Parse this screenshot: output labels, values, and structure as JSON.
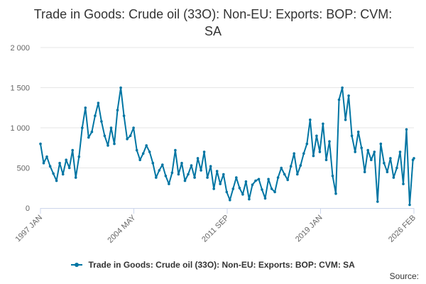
{
  "chart_data": {
    "type": "line",
    "title": "Trade in Goods: Crude oil (33O): Non-EU: Exports: BOP: CVM: SA",
    "xlabel": "",
    "ylabel": "",
    "ylim": [
      0,
      2000
    ],
    "y_ticks": [
      0,
      500,
      1000,
      1500,
      2000
    ],
    "y_tick_labels": [
      "0",
      "500",
      "1 000",
      "1 500",
      "2 000"
    ],
    "x_tick_labels": [
      "1997 JAN",
      "2004 MAY",
      "2011 SEP",
      "2019 JAN",
      "2026 FEB"
    ],
    "x_range": [
      "1997 JAN",
      "2026 FEB"
    ],
    "grid": true,
    "legend": "bottom-center",
    "color": "#0075a3",
    "series": [
      {
        "name": "Trade in Goods: Crude oil (33O): Non-EU: Exports: BOP: CVM: SA",
        "points": [
          [
            1997.0,
            800
          ],
          [
            1997.25,
            560
          ],
          [
            1997.5,
            640
          ],
          [
            1997.75,
            520
          ],
          [
            1998.0,
            430
          ],
          [
            1998.25,
            340
          ],
          [
            1998.5,
            560
          ],
          [
            1998.75,
            420
          ],
          [
            1999.0,
            600
          ],
          [
            1999.25,
            500
          ],
          [
            1999.5,
            720
          ],
          [
            1999.75,
            380
          ],
          [
            2000.0,
            640
          ],
          [
            2000.25,
            1000
          ],
          [
            2000.5,
            1250
          ],
          [
            2000.75,
            880
          ],
          [
            2001.0,
            950
          ],
          [
            2001.25,
            1150
          ],
          [
            2001.5,
            1310
          ],
          [
            2001.75,
            1080
          ],
          [
            2002.0,
            900
          ],
          [
            2002.25,
            780
          ],
          [
            2002.5,
            1000
          ],
          [
            2002.75,
            800
          ],
          [
            2003.0,
            1220
          ],
          [
            2003.25,
            1500
          ],
          [
            2003.5,
            1150
          ],
          [
            2003.75,
            860
          ],
          [
            2004.0,
            900
          ],
          [
            2004.25,
            1000
          ],
          [
            2004.5,
            720
          ],
          [
            2004.75,
            600
          ],
          [
            2005.0,
            680
          ],
          [
            2005.25,
            780
          ],
          [
            2005.5,
            700
          ],
          [
            2005.75,
            560
          ],
          [
            2006.0,
            380
          ],
          [
            2006.25,
            470
          ],
          [
            2006.5,
            540
          ],
          [
            2006.75,
            400
          ],
          [
            2007.0,
            300
          ],
          [
            2007.25,
            440
          ],
          [
            2007.5,
            720
          ],
          [
            2007.75,
            420
          ],
          [
            2008.0,
            560
          ],
          [
            2008.25,
            340
          ],
          [
            2008.5,
            420
          ],
          [
            2008.75,
            530
          ],
          [
            2009.0,
            380
          ],
          [
            2009.25,
            620
          ],
          [
            2009.5,
            470
          ],
          [
            2009.75,
            700
          ],
          [
            2010.0,
            380
          ],
          [
            2010.25,
            520
          ],
          [
            2010.5,
            240
          ],
          [
            2010.75,
            460
          ],
          [
            2011.0,
            300
          ],
          [
            2011.25,
            420
          ],
          [
            2011.5,
            200
          ],
          [
            2011.75,
            100
          ],
          [
            2012.0,
            240
          ],
          [
            2012.25,
            380
          ],
          [
            2012.5,
            250
          ],
          [
            2012.75,
            170
          ],
          [
            2013.0,
            330
          ],
          [
            2013.25,
            110
          ],
          [
            2013.5,
            290
          ],
          [
            2013.75,
            340
          ],
          [
            2014.0,
            360
          ],
          [
            2014.25,
            230
          ],
          [
            2014.5,
            120
          ],
          [
            2014.75,
            360
          ],
          [
            2015.0,
            240
          ],
          [
            2015.25,
            200
          ],
          [
            2015.5,
            380
          ],
          [
            2015.75,
            500
          ],
          [
            2016.0,
            420
          ],
          [
            2016.25,
            350
          ],
          [
            2016.5,
            520
          ],
          [
            2016.75,
            680
          ],
          [
            2017.0,
            420
          ],
          [
            2017.25,
            530
          ],
          [
            2017.5,
            680
          ],
          [
            2017.75,
            800
          ],
          [
            2018.0,
            1100
          ],
          [
            2018.25,
            650
          ],
          [
            2018.5,
            900
          ],
          [
            2018.75,
            700
          ],
          [
            2019.0,
            1050
          ],
          [
            2019.25,
            600
          ],
          [
            2019.5,
            830
          ],
          [
            2019.75,
            400
          ],
          [
            2020.0,
            180
          ],
          [
            2020.25,
            1350
          ],
          [
            2020.5,
            1500
          ],
          [
            2020.75,
            1100
          ],
          [
            2021.0,
            1400
          ],
          [
            2021.25,
            900
          ],
          [
            2021.5,
            700
          ],
          [
            2021.75,
            950
          ],
          [
            2022.0,
            750
          ],
          [
            2022.25,
            450
          ],
          [
            2022.5,
            720
          ],
          [
            2022.75,
            600
          ],
          [
            2023.0,
            700
          ],
          [
            2023.25,
            80
          ],
          [
            2023.5,
            800
          ],
          [
            2023.75,
            560
          ],
          [
            2024.0,
            450
          ],
          [
            2024.25,
            620
          ],
          [
            2024.5,
            380
          ],
          [
            2024.75,
            500
          ],
          [
            2025.0,
            700
          ],
          [
            2025.25,
            300
          ],
          [
            2025.5,
            980
          ],
          [
            2025.75,
            40
          ],
          [
            2026.0,
            600
          ],
          [
            2026.08,
            620
          ]
        ]
      }
    ]
  },
  "credits": {
    "label": "Source:"
  }
}
